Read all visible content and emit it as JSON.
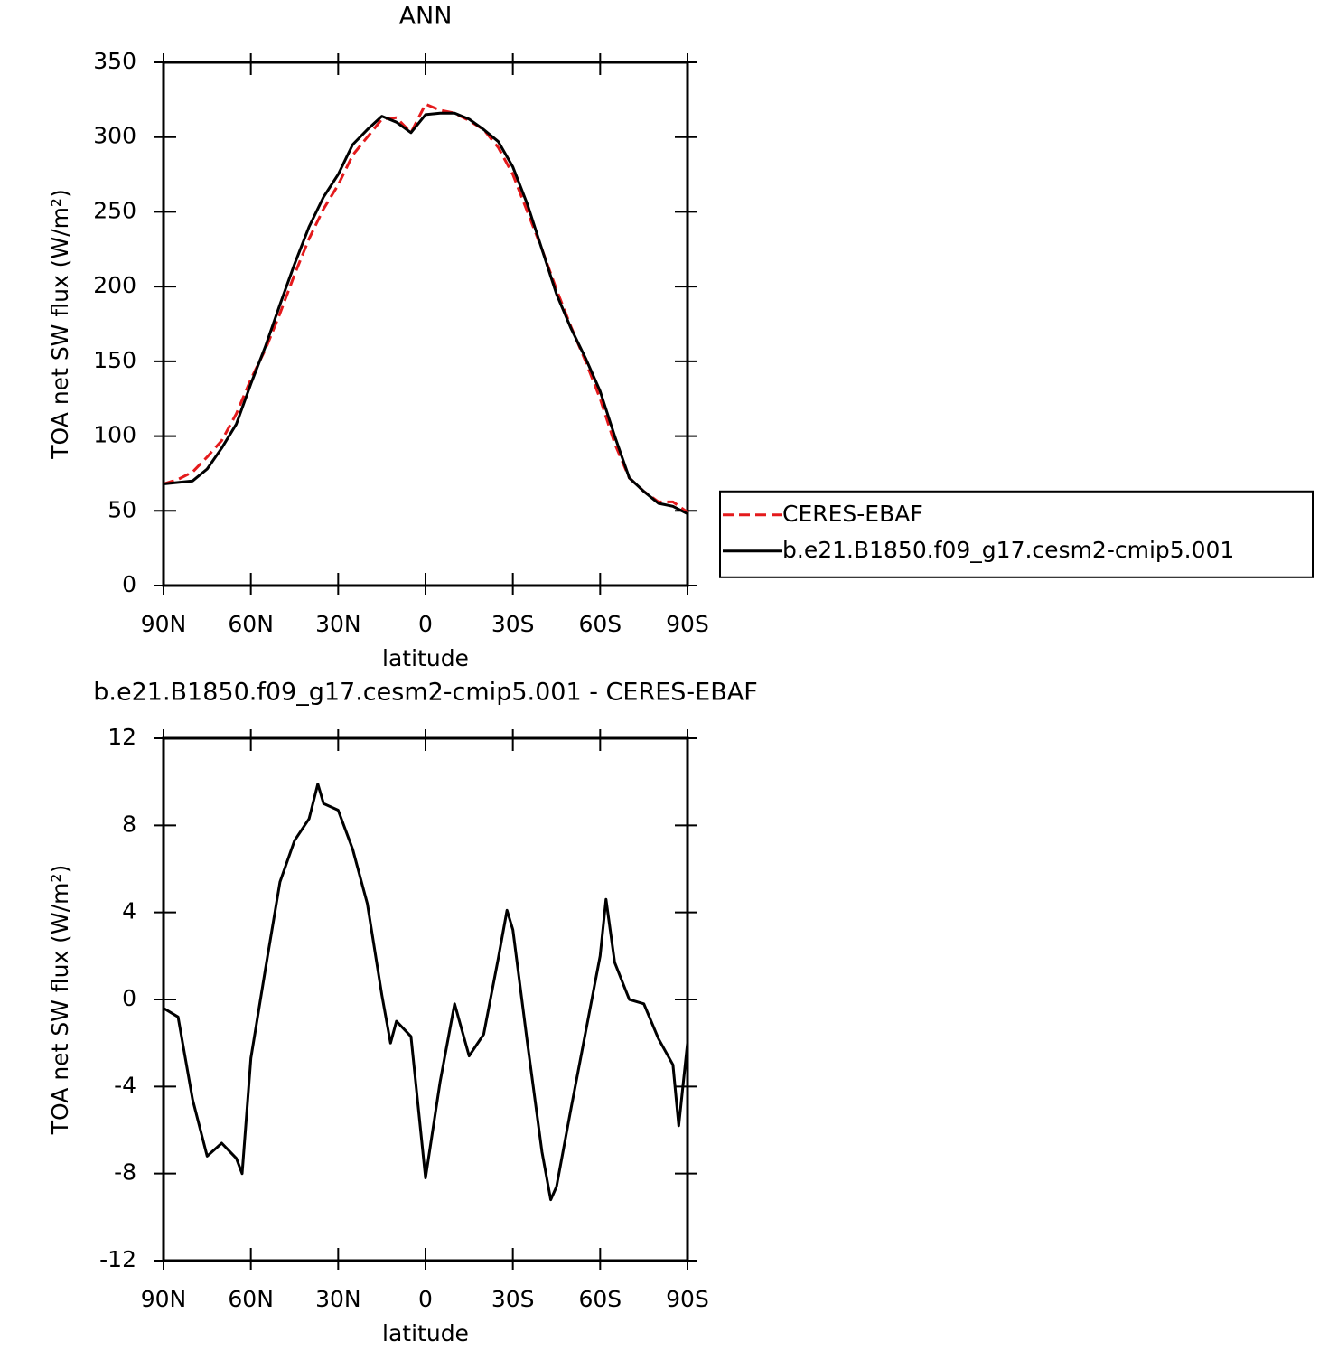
{
  "chart_data": [
    {
      "type": "line",
      "title": "ANN",
      "xlabel": "latitude",
      "ylabel": "TOA net SW flux (W/m²)",
      "x": [
        90,
        85,
        80,
        75,
        70,
        65,
        60,
        55,
        50,
        45,
        40,
        35,
        30,
        25,
        20,
        15,
        10,
        5,
        0,
        -5,
        -10,
        -15,
        -20,
        -25,
        -30,
        -35,
        -40,
        -45,
        -50,
        -55,
        -60,
        -65,
        -70,
        -75,
        -80,
        -85,
        -90
      ],
      "series": [
        {
          "name": "CERES-EBAF",
          "color": "#e41a1c",
          "dash": true,
          "values": [
            68,
            71,
            76,
            86,
            97,
            115,
            138,
            158,
            182,
            208,
            232,
            252,
            268,
            288,
            300,
            312,
            313,
            303,
            322,
            318,
            316,
            311,
            305,
            293,
            275,
            250,
            225,
            198,
            173,
            150,
            125,
            95,
            72,
            63,
            56,
            56,
            49
          ]
        },
        {
          "name": "b.e21.B1850.f09_g17.cesm2-cmip5.001",
          "color": "#000000",
          "dash": false,
          "values": [
            68,
            69,
            70,
            78,
            92,
            108,
            135,
            160,
            188,
            215,
            240,
            260,
            275,
            295,
            305,
            314,
            310,
            303,
            315,
            316,
            316,
            312,
            305,
            297,
            280,
            255,
            225,
            195,
            172,
            152,
            130,
            100,
            72,
            63,
            55,
            53,
            48
          ]
        }
      ],
      "xlim": [
        90,
        -90
      ],
      "xticks": [
        {
          "value": 90,
          "label": "90N"
        },
        {
          "value": 60,
          "label": "60N"
        },
        {
          "value": 30,
          "label": "30N"
        },
        0,
        {
          "value": -30,
          "label": "30S"
        },
        {
          "value": -60,
          "label": "60S"
        },
        {
          "value": -90,
          "label": "90S"
        }
      ],
      "ylim": [
        0,
        350
      ],
      "yticks": [
        0,
        50,
        100,
        150,
        200,
        250,
        300,
        350
      ],
      "legend": "right"
    },
    {
      "type": "line",
      "title": "b.e21.B1850.f09_g17.cesm2-cmip5.001 - CERES-EBAF",
      "xlabel": "latitude",
      "ylabel": "TOA net SW flux (W/m²)",
      "x": [
        90,
        85,
        80,
        75,
        70,
        65,
        63,
        60,
        55,
        50,
        45,
        40,
        37,
        35,
        30,
        25,
        20,
        15,
        12,
        10,
        5,
        0,
        -5,
        -10,
        -15,
        -20,
        -25,
        -28,
        -30,
        -35,
        -40,
        -43,
        -45,
        -50,
        -55,
        -60,
        -62,
        -65,
        -70,
        -75,
        -80,
        -85,
        -87,
        -90
      ],
      "series": [
        {
          "color": "#000000",
          "dash": false,
          "values": [
            -0.4,
            -0.8,
            -4.6,
            -7.2,
            -6.6,
            -7.3,
            -8,
            -2.7,
            1.4,
            5.4,
            7.3,
            8.3,
            9.9,
            9.0,
            8.7,
            6.9,
            4.4,
            0.2,
            -2,
            -1.0,
            -1.7,
            -8.2,
            -3.8,
            -0.2,
            -2.6,
            -1.6,
            1.9,
            4.1,
            3.2,
            -2.0,
            -7.0,
            -9.2,
            -8.6,
            -5.0,
            -1.5,
            2.0,
            4.6,
            1.7,
            0.0,
            -0.2,
            -1.8,
            -3.0,
            -5.8,
            -2.0
          ]
        }
      ],
      "xlim": [
        90,
        -90
      ],
      "xticks": [
        {
          "value": 90,
          "label": "90N"
        },
        {
          "value": 60,
          "label": "60N"
        },
        {
          "value": 30,
          "label": "30N"
        },
        0,
        {
          "value": -30,
          "label": "30S"
        },
        {
          "value": -60,
          "label": "60S"
        },
        {
          "value": -90,
          "label": "90S"
        }
      ],
      "ylim": [
        -12,
        12
      ],
      "yticks": [
        -12,
        -8,
        -4,
        0,
        4,
        8,
        12
      ]
    }
  ]
}
